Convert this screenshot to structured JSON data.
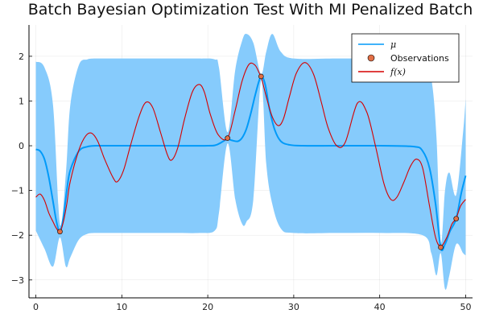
{
  "chart_data": {
    "type": "line",
    "title": "Batch Bayesian Optimization Test With MI Penalized Batch",
    "xlabel": "",
    "ylabel": "",
    "xlim": [
      -0.8,
      50.8
    ],
    "ylim": [
      -3.4,
      2.7
    ],
    "xticks": [
      0,
      10,
      20,
      30,
      40,
      50
    ],
    "yticks": [
      -3,
      -2,
      -1,
      0,
      1,
      2
    ],
    "xtick_labels": [
      "0",
      "10",
      "20",
      "30",
      "40",
      "50"
    ],
    "ytick_labels": [
      "−3",
      "−2",
      "−1",
      "0",
      "1",
      "2"
    ],
    "grid": true,
    "legend_position": "top-right",
    "legend": [
      {
        "label": "μ",
        "kind": "line",
        "color": "#009af9"
      },
      {
        "label": "Observations",
        "kind": "marker",
        "color": "#e26f46"
      },
      {
        "label": "f(x)",
        "kind": "line",
        "color": "#d60000"
      }
    ],
    "series": [
      {
        "kind": "band",
        "color": "#86cbfc",
        "x": [
          0,
          1,
          2,
          2.8,
          3.5,
          4,
          5,
          6,
          7,
          8,
          10,
          13,
          16,
          19,
          20.8,
          21.3,
          22.3,
          23.2,
          24,
          24.5,
          25.3,
          26.2,
          26.8,
          27.5,
          28.5,
          30,
          35,
          40,
          45,
          46,
          46.6,
          47.1,
          47.6,
          48.1,
          48.9,
          49.7,
          50
        ],
        "upper": [
          1.88,
          1.75,
          0.9,
          -1.75,
          -0.6,
          0.9,
          1.8,
          1.93,
          1.95,
          1.95,
          1.95,
          1.95,
          1.95,
          1.95,
          1.93,
          1.75,
          0.3,
          1.7,
          2.35,
          2.5,
          2.3,
          1.6,
          2.1,
          2.5,
          2.1,
          1.95,
          1.95,
          1.95,
          1.9,
          1.5,
          0.2,
          -2.15,
          -1.0,
          -0.6,
          -1.1,
          0.3,
          1.05
        ],
        "lower": [
          -1.9,
          -2.3,
          -2.7,
          -2.05,
          -2.7,
          -2.5,
          -2.1,
          -1.97,
          -1.95,
          -1.95,
          -1.95,
          -1.95,
          -1.95,
          -1.95,
          -1.9,
          -1.5,
          0.05,
          -1.2,
          -1.75,
          -1.7,
          -1.2,
          1.45,
          -0.4,
          -1.3,
          -1.85,
          -1.95,
          -1.95,
          -1.95,
          -2.0,
          -2.4,
          -2.9,
          -2.4,
          -3.2,
          -2.9,
          -2.2,
          -2.4,
          -2.45
        ]
      },
      {
        "name": "μ",
        "kind": "line",
        "color": "#009af9",
        "x": [
          0,
          0.5,
          1,
          1.5,
          2,
          2.4,
          2.8,
          3.2,
          3.6,
          4,
          5,
          6,
          7,
          8,
          10,
          15,
          20,
          21,
          21.8,
          22.3,
          22.8,
          23.5,
          24,
          24.5,
          25,
          25.5,
          26,
          26.3,
          26.7,
          27.2,
          27.8,
          28.5,
          29.5,
          31,
          35,
          40,
          44,
          45,
          45.8,
          46.5,
          47.1,
          47.6,
          48.2,
          48.9,
          49.5,
          50
        ],
        "y": [
          -0.08,
          -0.12,
          -0.3,
          -0.7,
          -1.25,
          -1.7,
          -1.92,
          -1.6,
          -1.0,
          -0.55,
          -0.12,
          -0.02,
          0.0,
          0.0,
          0.0,
          0.0,
          0.0,
          0.02,
          0.1,
          0.15,
          0.12,
          0.1,
          0.18,
          0.38,
          0.72,
          1.12,
          1.47,
          1.55,
          1.35,
          0.8,
          0.35,
          0.1,
          0.02,
          0.0,
          0.0,
          0.0,
          -0.02,
          -0.12,
          -0.5,
          -1.3,
          -2.28,
          -2.2,
          -1.9,
          -1.63,
          -1.05,
          -0.67
        ]
      },
      {
        "name": "f(x)",
        "kind": "line",
        "color": "#d60000",
        "x": [
          0,
          0.5,
          1,
          1.5,
          2,
          2.4,
          2.8,
          3.2,
          3.6,
          4,
          5,
          5.8,
          6.5,
          7.2,
          8,
          9,
          9.5,
          10.2,
          11,
          12,
          12.8,
          13.6,
          14.5,
          15.3,
          15.8,
          16.5,
          17.3,
          18.2,
          19,
          19.6,
          20.3,
          21.2,
          22.3,
          23.2,
          24,
          24.8,
          25.5,
          26,
          26.2,
          26.8,
          27.5,
          28.2,
          28.8,
          29.5,
          30.3,
          31.3,
          32.3,
          33.2,
          34,
          35,
          36,
          37.4,
          38.5,
          39.5,
          40.5,
          41.3,
          42,
          42.8,
          43.6,
          44.3,
          45,
          45.8,
          46.5,
          47.1,
          47.8,
          48.4,
          48.9,
          49.4,
          50
        ],
        "y": [
          -1.15,
          -1.08,
          -1.22,
          -1.5,
          -1.7,
          -1.85,
          -1.92,
          -1.7,
          -1.3,
          -0.8,
          -0.1,
          0.22,
          0.28,
          0.1,
          -0.3,
          -0.72,
          -0.8,
          -0.55,
          0.0,
          0.65,
          0.97,
          0.85,
          0.3,
          -0.2,
          -0.32,
          -0.05,
          0.6,
          1.2,
          1.37,
          1.2,
          0.7,
          0.25,
          0.17,
          0.8,
          1.45,
          1.82,
          1.8,
          1.62,
          1.55,
          1.1,
          0.65,
          0.45,
          0.6,
          1.1,
          1.62,
          1.86,
          1.6,
          0.98,
          0.4,
          0.0,
          0.08,
          0.95,
          0.75,
          0.0,
          -0.85,
          -1.2,
          -1.15,
          -0.82,
          -0.45,
          -0.3,
          -0.5,
          -1.35,
          -2.05,
          -2.25,
          -2.05,
          -1.75,
          -1.62,
          -1.35,
          -1.2
        ]
      },
      {
        "name": "Observations",
        "kind": "scatter",
        "color": "#e26f46",
        "x": [
          2.8,
          22.3,
          26.2,
          47.1,
          48.9
        ],
        "y": [
          -1.92,
          0.17,
          1.55,
          -2.27,
          -1.63
        ]
      }
    ]
  }
}
